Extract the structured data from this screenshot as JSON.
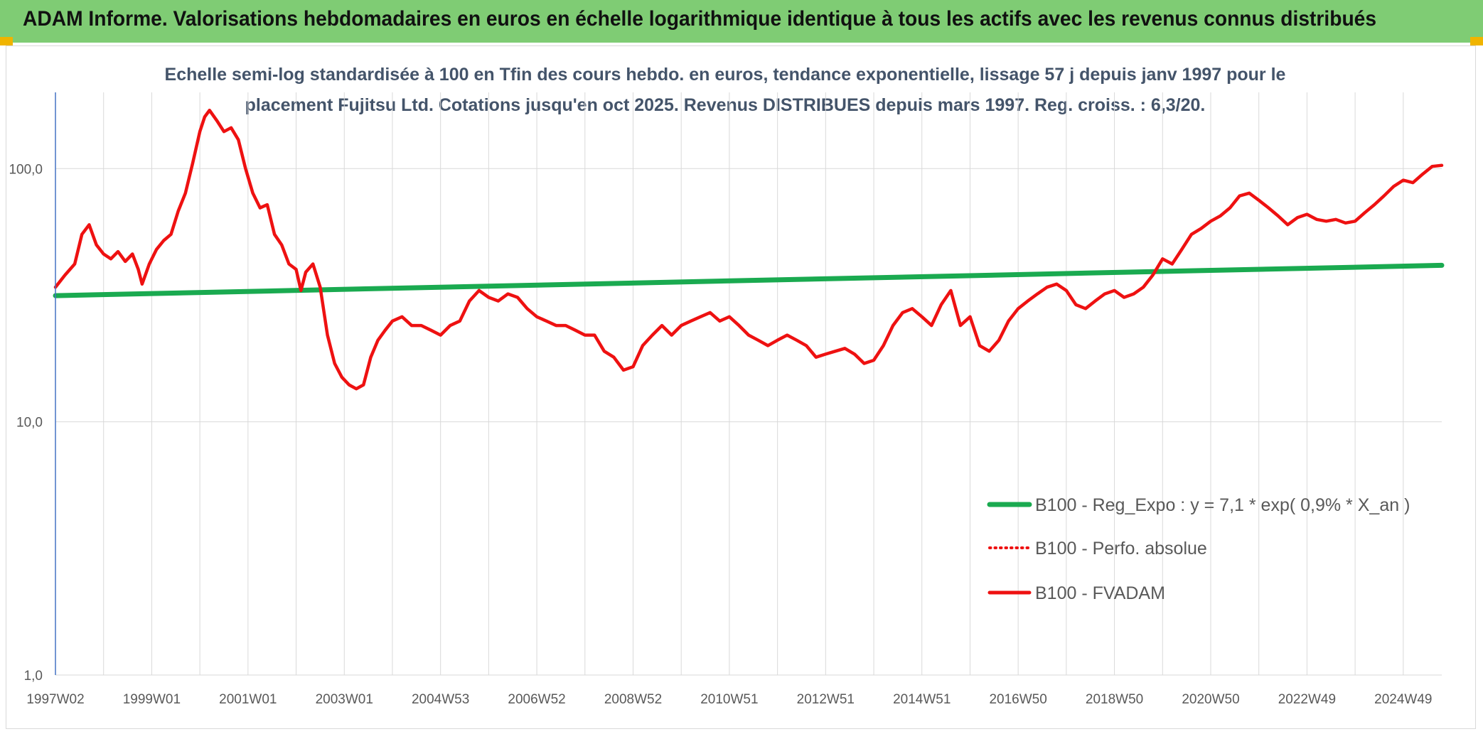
{
  "header": {
    "title": "ADAM Informe. Valorisations hebdomadaires en euros en échelle logarithmique identique à tous les actifs avec les revenus connus distribués"
  },
  "colors": {
    "banner": "#7fcc74",
    "corner_mark": "#f0b400",
    "regression": "#1aaa50",
    "fvadam": "#ee1111",
    "perfo": "#ee1111",
    "grid": "#d9d9d9",
    "axis": "#4472c4",
    "subtitle": "#44546a"
  },
  "chart_data": {
    "type": "line",
    "title_lines": [
      "Echelle semi-log standardisée à 100 en Tfin des cours hebdo. en euros, tendance exponentielle, lissage 57 j depuis janv 1997 pour le",
      "placement Fujitsu Ltd. Cotations jusqu'en oct 2025. Revenus DISTRIBUES depuis mars 1997. Reg. croiss. : 6,3/20."
    ],
    "xlabel": "",
    "ylabel": "",
    "y_scale": "log",
    "ylim": [
      1,
      200
    ],
    "xlim": [
      1997.0,
      2025.8
    ],
    "y_ticks": [
      {
        "value": 1,
        "label": "1,0"
      },
      {
        "value": 10,
        "label": "10,0"
      },
      {
        "value": 100,
        "label": "100,0"
      }
    ],
    "x_ticks": [
      {
        "value": 1997.0,
        "label": "1997W02"
      },
      {
        "value": 1999.0,
        "label": "1999W01"
      },
      {
        "value": 2001.0,
        "label": "2001W01"
      },
      {
        "value": 2003.0,
        "label": "2003W01"
      },
      {
        "value": 2005.0,
        "label": "2004W53"
      },
      {
        "value": 2007.0,
        "label": "2006W52"
      },
      {
        "value": 2009.0,
        "label": "2008W52"
      },
      {
        "value": 2011.0,
        "label": "2010W51"
      },
      {
        "value": 2013.0,
        "label": "2012W51"
      },
      {
        "value": 2015.0,
        "label": "2014W51"
      },
      {
        "value": 2017.0,
        "label": "2016W50"
      },
      {
        "value": 2019.0,
        "label": "2018W50"
      },
      {
        "value": 2021.0,
        "label": "2020W50"
      },
      {
        "value": 2023.0,
        "label": "2022W49"
      },
      {
        "value": 2025.0,
        "label": "2024W49"
      }
    ],
    "grid_x": [
      1997.0,
      1998.0,
      1999.0,
      2000.0,
      2001.0,
      2002.0,
      2003.0,
      2004.0,
      2005.0,
      2006.0,
      2007.0,
      2008.0,
      2009.0,
      2010.0,
      2011.0,
      2012.0,
      2013.0,
      2014.0,
      2015.0,
      2016.0,
      2017.0,
      2018.0,
      2019.0,
      2020.0,
      2021.0,
      2022.0,
      2023.0,
      2024.0,
      2025.0
    ],
    "grid_y": [
      1,
      10,
      100
    ],
    "grid": true,
    "legend_position": "bottom-right",
    "series": [
      {
        "name": "B100 - Reg_Expo : y = 7,1 * exp( 0,9% *  X_an )",
        "style": "solid-thick",
        "color": "#1aaa50",
        "x": [
          1997.0,
          2025.8
        ],
        "y": [
          31.5,
          41.5
        ]
      },
      {
        "name": "B100 - Perfo. absolue",
        "style": "dotted",
        "color": "#ee1111",
        "x": [],
        "y": []
      },
      {
        "name": "B100 - FVADAM",
        "style": "solid",
        "color": "#ee1111",
        "x": [
          1997.0,
          1997.2,
          1997.4,
          1997.55,
          1997.7,
          1997.85,
          1998.0,
          1998.15,
          1998.3,
          1998.45,
          1998.6,
          1998.72,
          1998.8,
          1998.95,
          1999.1,
          1999.25,
          1999.4,
          1999.55,
          1999.7,
          1999.85,
          2000.0,
          2000.1,
          2000.2,
          2000.35,
          2000.5,
          2000.65,
          2000.8,
          2000.95,
          2001.1,
          2001.25,
          2001.4,
          2001.55,
          2001.7,
          2001.85,
          2002.0,
          2002.1,
          2002.2,
          2002.35,
          2002.5,
          2002.65,
          2002.8,
          2002.95,
          2003.1,
          2003.25,
          2003.4,
          2003.55,
          2003.7,
          2003.85,
          2004.0,
          2004.2,
          2004.4,
          2004.6,
          2004.8,
          2005.0,
          2005.2,
          2005.4,
          2005.6,
          2005.8,
          2006.0,
          2006.2,
          2006.4,
          2006.6,
          2006.8,
          2007.0,
          2007.2,
          2007.4,
          2007.6,
          2007.8,
          2008.0,
          2008.2,
          2008.4,
          2008.6,
          2008.8,
          2009.0,
          2009.2,
          2009.4,
          2009.6,
          2009.8,
          2010.0,
          2010.2,
          2010.4,
          2010.6,
          2010.8,
          2011.0,
          2011.2,
          2011.4,
          2011.6,
          2011.8,
          2012.0,
          2012.2,
          2012.4,
          2012.6,
          2012.8,
          2013.0,
          2013.2,
          2013.4,
          2013.6,
          2013.8,
          2014.0,
          2014.2,
          2014.4,
          2014.6,
          2014.8,
          2015.0,
          2015.2,
          2015.4,
          2015.6,
          2015.8,
          2016.0,
          2016.2,
          2016.4,
          2016.6,
          2016.8,
          2017.0,
          2017.2,
          2017.4,
          2017.6,
          2017.8,
          2018.0,
          2018.2,
          2018.4,
          2018.6,
          2018.8,
          2019.0,
          2019.2,
          2019.4,
          2019.6,
          2019.8,
          2020.0,
          2020.2,
          2020.4,
          2020.6,
          2020.8,
          2021.0,
          2021.2,
          2021.4,
          2021.6,
          2021.8,
          2022.0,
          2022.2,
          2022.4,
          2022.6,
          2022.8,
          2023.0,
          2023.2,
          2023.4,
          2023.6,
          2023.8,
          2024.0,
          2024.2,
          2024.4,
          2024.6,
          2024.8,
          2025.0,
          2025.2,
          2025.4,
          2025.6,
          2025.8
        ],
        "y": [
          34,
          38,
          42,
          55,
          60,
          50,
          46,
          44,
          47,
          43,
          46,
          40,
          35,
          42,
          48,
          52,
          55,
          68,
          80,
          105,
          140,
          160,
          170,
          155,
          140,
          145,
          130,
          100,
          80,
          70,
          72,
          55,
          50,
          42,
          40,
          33,
          39,
          42,
          34,
          22,
          17,
          15,
          14,
          13.5,
          14,
          18,
          21,
          23,
          25,
          26,
          24,
          24,
          23,
          22,
          24,
          25,
          30,
          33,
          31,
          30,
          32,
          31,
          28,
          26,
          25,
          24,
          24,
          23,
          22,
          22,
          19,
          18,
          16,
          16.5,
          20,
          22,
          24,
          22,
          24,
          25,
          26,
          27,
          25,
          26,
          24,
          22,
          21,
          20,
          21,
          22,
          21,
          20,
          18,
          18.5,
          19,
          19.5,
          18.5,
          17,
          17.5,
          20,
          24,
          27,
          28,
          26,
          24,
          29,
          33,
          24,
          26,
          20,
          19,
          21,
          25,
          28,
          30,
          32,
          34,
          35,
          33,
          29,
          28,
          30,
          32,
          33,
          31,
          32,
          34,
          38,
          44,
          42,
          48,
          55,
          58,
          62,
          65,
          70,
          78,
          80,
          75,
          70,
          65,
          60,
          64,
          66,
          63,
          62,
          63,
          61,
          62,
          67,
          72,
          78,
          85,
          90,
          88,
          95,
          102,
          103
        ]
      }
    ]
  }
}
